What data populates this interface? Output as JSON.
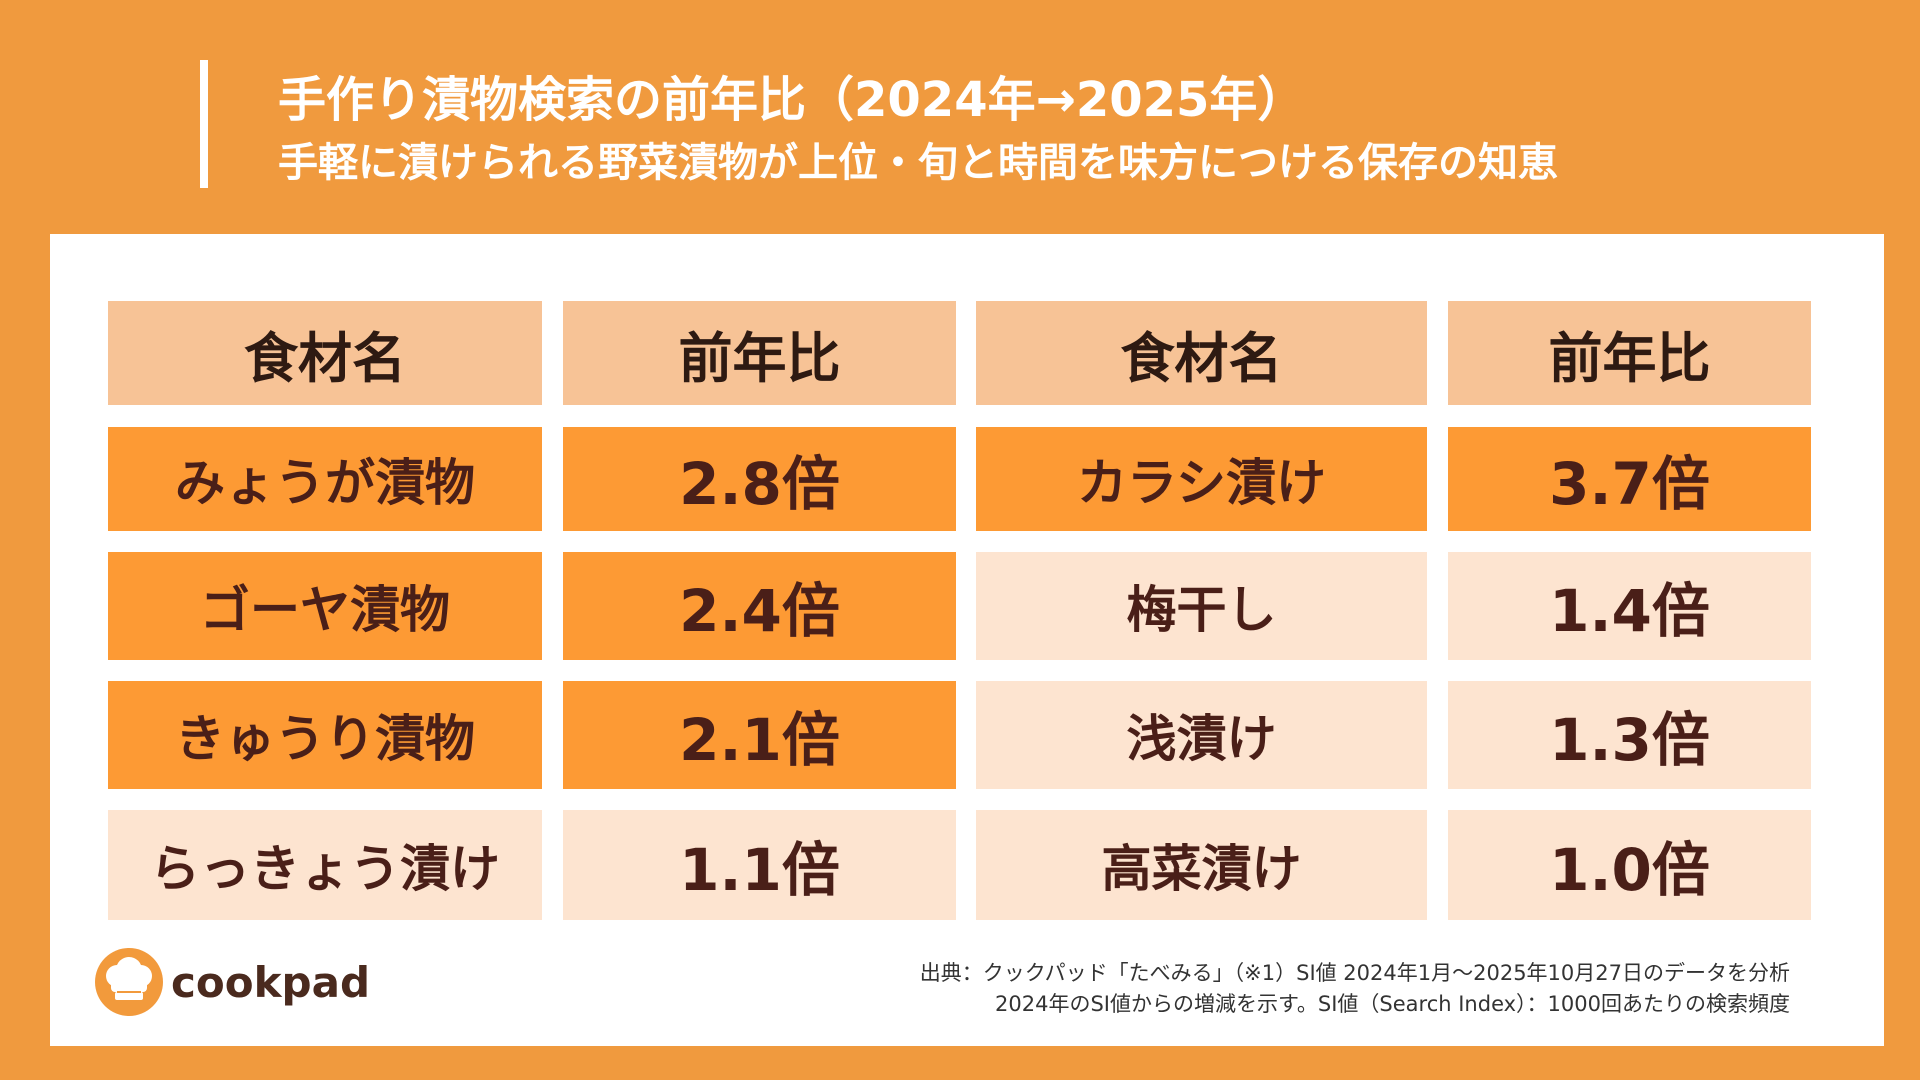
{
  "title": "手作り漬物検索の前年比（2024年→2025年）",
  "subtitle": "手軽に漬けられる野菜漬物が上位・旬と時間を味方につける保存の知恵",
  "headers": {
    "name_left": "食材名",
    "ratio_left": "前年比",
    "name_right": "食材名",
    "ratio_right": "前年比"
  },
  "left_rows": [
    {
      "name": "みょうが漬物",
      "ratio": "2.8倍"
    },
    {
      "name": "ゴーヤ漬物",
      "ratio": "2.4倍"
    },
    {
      "name": "きゅうり漬物",
      "ratio": "2.1倍"
    },
    {
      "name": "らっきょう漬け",
      "ratio": "1.1倍"
    }
  ],
  "right_rows": [
    {
      "name": "カラシ漬け",
      "ratio": "3.7倍"
    },
    {
      "name": "梅干し",
      "ratio": "1.4倍"
    },
    {
      "name": "浅漬け",
      "ratio": "1.3倍"
    },
    {
      "name": "高菜漬け",
      "ratio": "1.0倍"
    }
  ],
  "logo": {
    "text": "cookpad",
    "icon": "chef-hat-icon"
  },
  "footnotes": {
    "line1": "出典：クックパッド「たべみる」（※1）SI値 2024年1月～2025年10月27日のデータを分析",
    "line2": "2024年のSI値からの増減を示す。SI値（Search Index）：1000回あたりの検索頻度"
  },
  "colors": {
    "background": "#F09A3E",
    "header_cell": "#F7C396",
    "highlight_cell": "#FD9A34",
    "normal_cell": "#FDE4D0",
    "text": "#4A1F18"
  }
}
